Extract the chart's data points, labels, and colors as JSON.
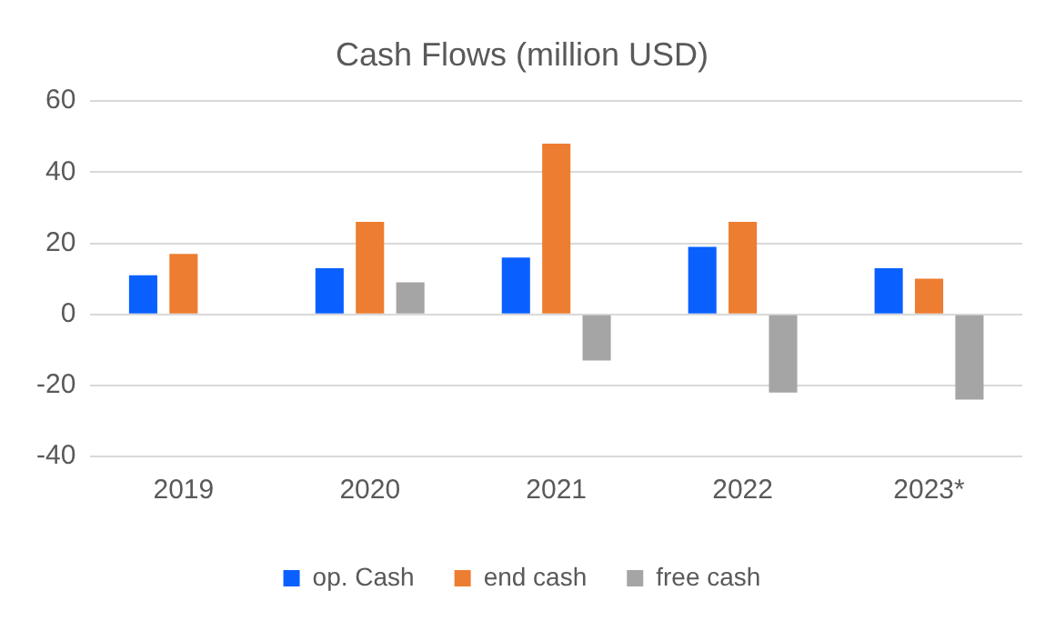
{
  "chart_data": {
    "type": "bar",
    "title": "Cash Flows (million USD)",
    "categories": [
      "2019",
      "2020",
      "2021",
      "2022",
      "2023*"
    ],
    "series": [
      {
        "name": "op. Cash",
        "color": "#0a60ff",
        "values": [
          11,
          13,
          16,
          19,
          13
        ]
      },
      {
        "name": "end cash",
        "color": "#ed7d31",
        "values": [
          17,
          26,
          48,
          26,
          10
        ]
      },
      {
        "name": "free cash",
        "color": "#a5a5a5",
        "values": [
          null,
          9,
          -13,
          -22,
          -24
        ]
      }
    ],
    "ylim": [
      -40,
      60
    ],
    "yticks": [
      -40,
      -20,
      0,
      20,
      40,
      60
    ],
    "grid": "y",
    "legend": "bottom"
  }
}
